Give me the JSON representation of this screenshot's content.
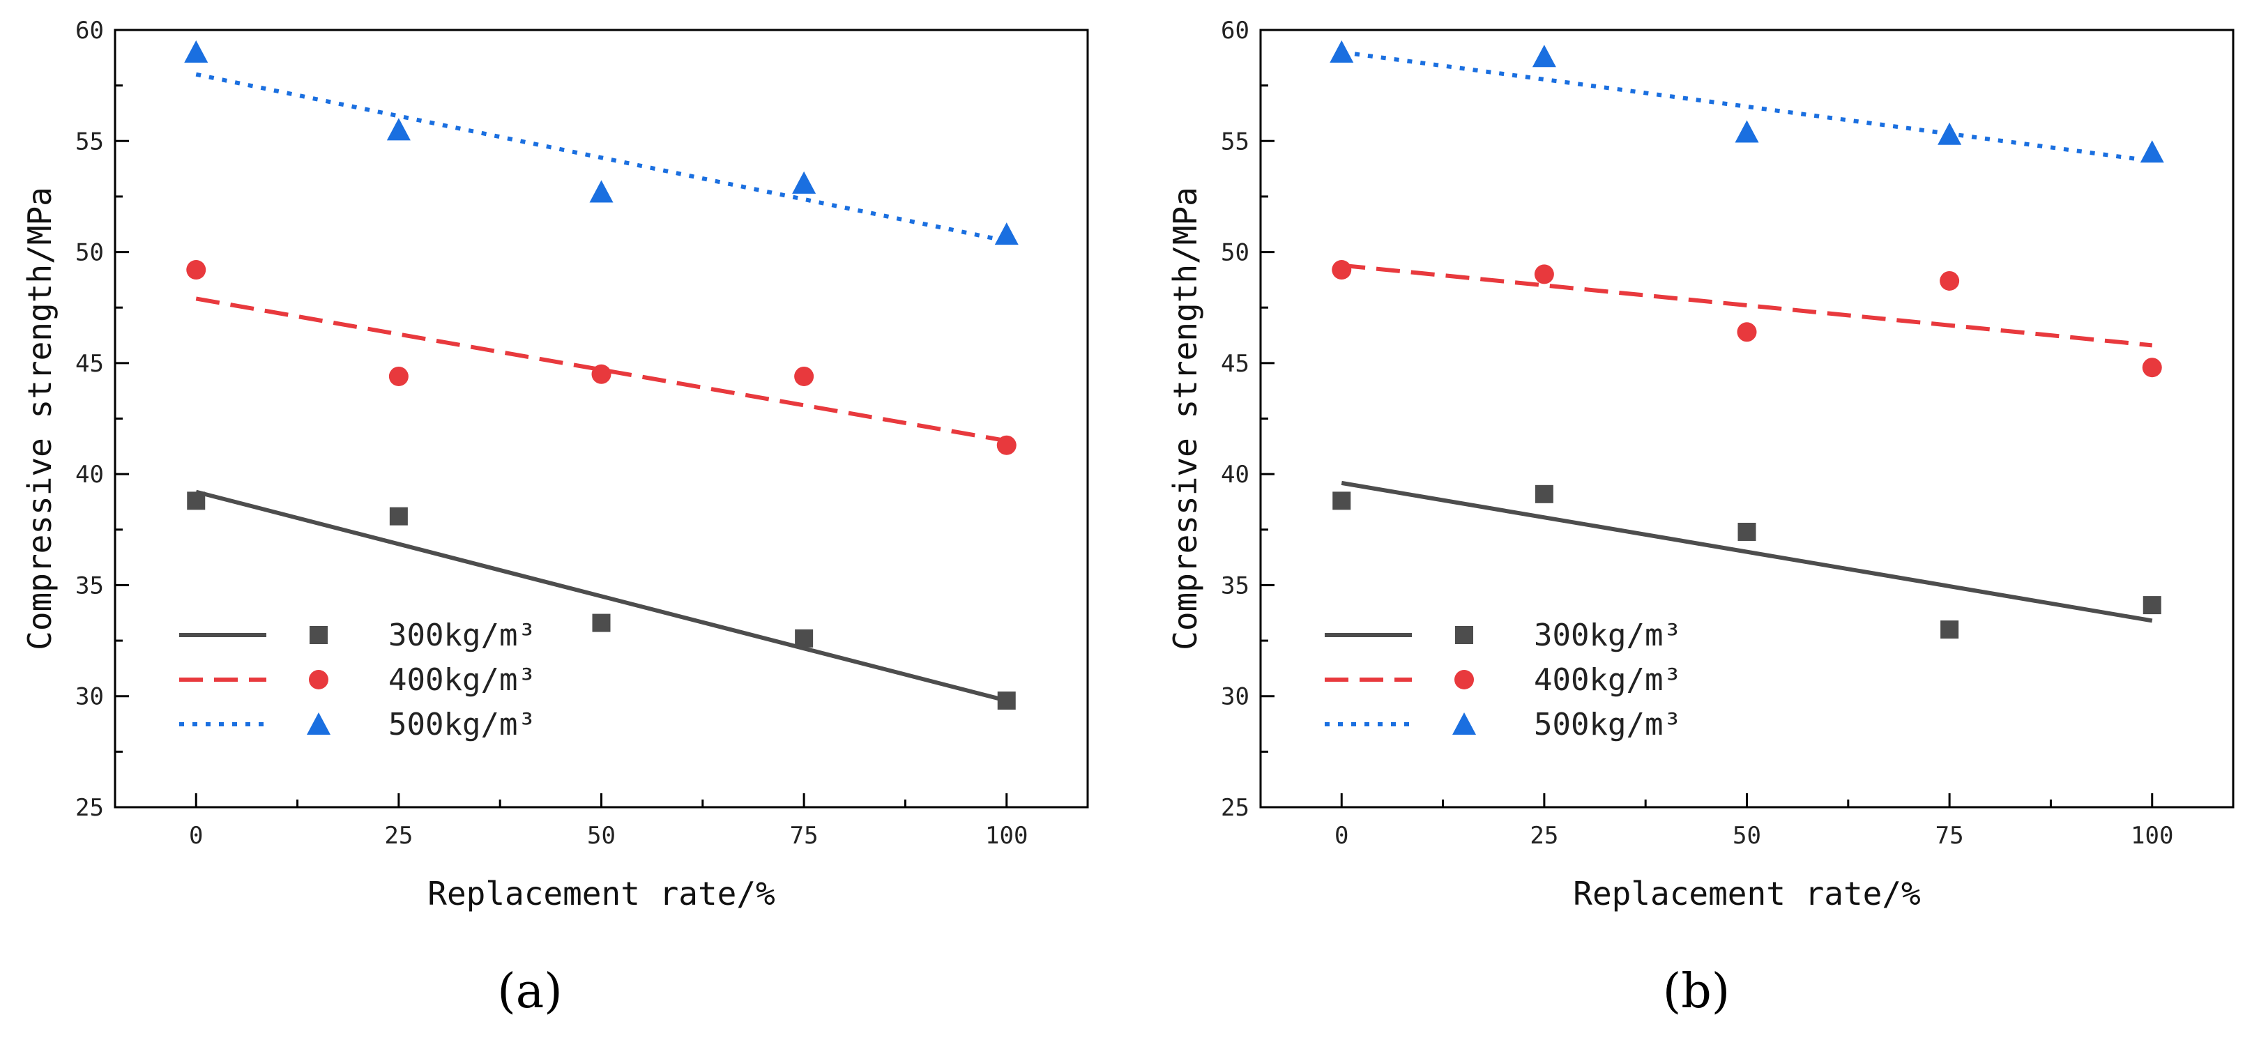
{
  "chart_data": [
    {
      "type": "scatter",
      "panel_label": "(a)",
      "xlabel": "Replacement rate/%",
      "ylabel": "Compressive strength/MPa",
      "xlim": [
        -10,
        110
      ],
      "ylim": [
        25,
        60
      ],
      "x_ticks": [
        "0",
        "25",
        "50",
        "75",
        "100"
      ],
      "y_ticks": [
        "25",
        "30",
        "35",
        "40",
        "45",
        "50",
        "55",
        "60"
      ],
      "x": [
        0,
        25,
        50,
        75,
        100
      ],
      "legend_position": "lower-left",
      "series": [
        {
          "name": "300kg/m³",
          "marker": "square",
          "line_style": "solid",
          "color": "#4d4d4d",
          "values": [
            38.8,
            38.1,
            33.3,
            32.6,
            29.8
          ],
          "fit": [
            39.2,
            29.8
          ]
        },
        {
          "name": "400kg/m³",
          "marker": "circle",
          "line_style": "dashed",
          "color": "#e8393d",
          "values": [
            49.2,
            44.4,
            44.5,
            44.4,
            41.3
          ],
          "fit": [
            47.9,
            41.5
          ]
        },
        {
          "name": "500kg/m³",
          "marker": "triangle",
          "line_style": "dotted",
          "color": "#1a6fe0",
          "values": [
            59.0,
            55.5,
            52.7,
            53.1,
            50.8
          ],
          "fit": [
            58.0,
            50.5
          ]
        }
      ]
    },
    {
      "type": "scatter",
      "panel_label": "(b)",
      "xlabel": "Replacement rate/%",
      "ylabel": "Compressive strength/MPa",
      "xlim": [
        -10,
        110
      ],
      "ylim": [
        25,
        60
      ],
      "x_ticks": [
        "0",
        "25",
        "50",
        "75",
        "100"
      ],
      "y_ticks": [
        "25",
        "30",
        "35",
        "40",
        "45",
        "50",
        "55",
        "60"
      ],
      "x": [
        0,
        25,
        50,
        75,
        100
      ],
      "legend_position": "lower-left",
      "series": [
        {
          "name": "300kg/m³",
          "marker": "square",
          "line_style": "solid",
          "color": "#4d4d4d",
          "values": [
            38.8,
            39.1,
            37.4,
            33.0,
            34.1
          ],
          "fit": [
            39.6,
            33.4
          ]
        },
        {
          "name": "400kg/m³",
          "marker": "circle",
          "line_style": "dashed",
          "color": "#e8393d",
          "values": [
            49.2,
            49.0,
            46.4,
            48.7,
            44.8
          ],
          "fit": [
            49.4,
            45.8
          ]
        },
        {
          "name": "500kg/m³",
          "marker": "triangle",
          "line_style": "dotted",
          "color": "#1a6fe0",
          "values": [
            59.0,
            58.8,
            55.4,
            55.3,
            54.5
          ],
          "fit": [
            59.0,
            54.1
          ]
        }
      ]
    }
  ]
}
